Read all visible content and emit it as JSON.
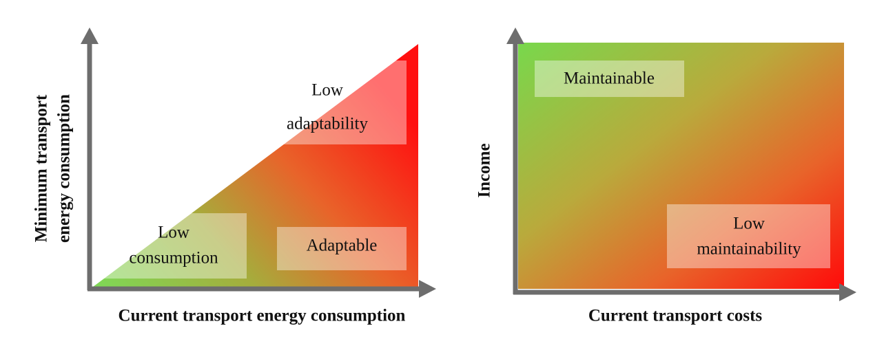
{
  "left_panel": {
    "x_axis_label": "Current transport energy consumption",
    "y_axis_label": [
      "Minimum transport",
      "energy consumption"
    ],
    "regions": [
      {
        "label": [
          "Low",
          "adaptability"
        ]
      },
      {
        "label": [
          "Low",
          "consumption"
        ]
      },
      {
        "label": [
          "Adaptable"
        ]
      }
    ]
  },
  "right_panel": {
    "x_axis_label": "Current transport costs",
    "y_axis_label": "Income",
    "regions": [
      {
        "label": [
          "Maintainable"
        ]
      },
      {
        "label": [
          "Low",
          "maintainability"
        ]
      }
    ]
  }
}
